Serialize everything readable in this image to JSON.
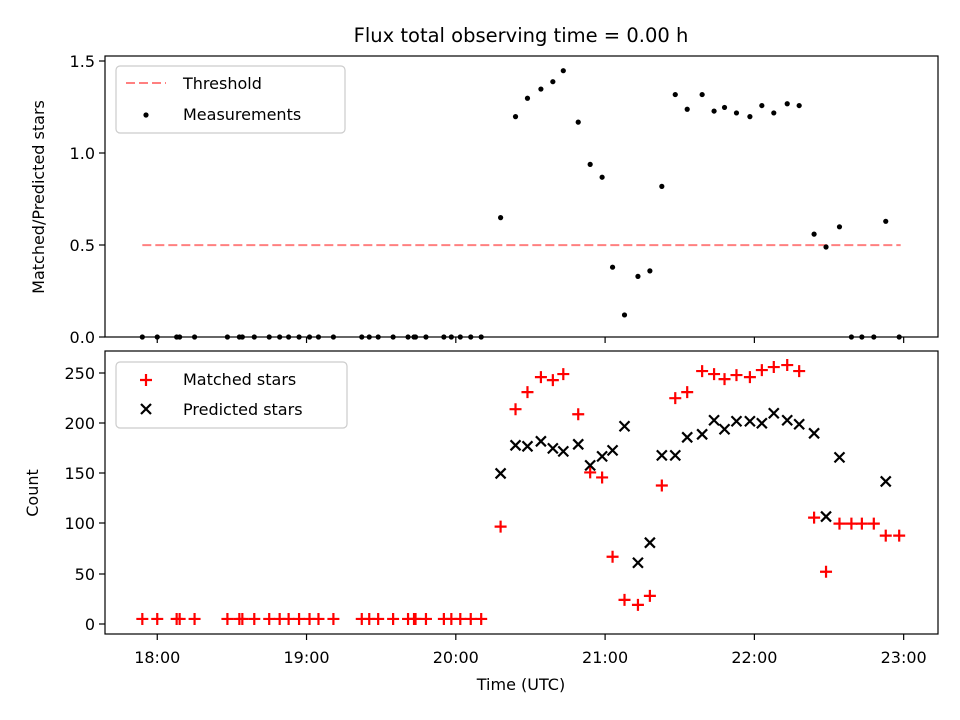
{
  "chart_data": [
    {
      "type": "scatter",
      "title": "Flux total observing time = 0.00 h",
      "xlabel": "",
      "ylabel": "Matched/Predicted stars",
      "ylim": [
        0,
        1.53
      ],
      "yticks": [
        "0.0",
        "0.5",
        "1.0",
        "1.5"
      ],
      "ytick_values": [
        0,
        0.5,
        1.0,
        1.5
      ],
      "xlim_hours": [
        17.65,
        23.23
      ],
      "xtick_values_hours": [
        18,
        19,
        20,
        21,
        22,
        23
      ],
      "legend_position": "upper-left",
      "series": [
        {
          "name": "Threshold",
          "kind": "dashed-line",
          "color": "#ff8080",
          "x_hours": [
            17.9,
            22.98
          ],
          "y": [
            0.5,
            0.5
          ]
        },
        {
          "name": "Measurements",
          "kind": "dot",
          "color": "#000000",
          "x_hours": [
            17.9,
            18.0,
            18.13,
            18.15,
            18.25,
            18.47,
            18.55,
            18.57,
            18.65,
            18.75,
            18.82,
            18.88,
            18.95,
            19.02,
            19.08,
            19.18,
            19.37,
            19.42,
            19.48,
            19.58,
            19.68,
            19.72,
            19.73,
            19.8,
            19.92,
            19.97,
            20.03,
            20.1,
            20.17,
            20.3,
            20.4,
            20.48,
            20.57,
            20.65,
            20.72,
            20.82,
            20.9,
            20.98,
            21.05,
            21.13,
            21.22,
            21.3,
            21.38,
            21.47,
            21.55,
            21.65,
            21.73,
            21.8,
            21.88,
            21.97,
            22.05,
            22.13,
            22.22,
            22.3,
            22.4,
            22.48,
            22.57,
            22.65,
            22.72,
            22.8,
            22.88,
            22.97
          ],
          "y": [
            0.0,
            0.0,
            0.0,
            0.0,
            0.0,
            0.0,
            0.0,
            0.0,
            0.0,
            0.0,
            0.0,
            0.0,
            0.0,
            0.0,
            0.0,
            0.0,
            0.0,
            0.0,
            0.0,
            0.0,
            0.0,
            0.0,
            0.0,
            0.0,
            0.0,
            0.0,
            0.0,
            0.0,
            0.0,
            0.65,
            1.2,
            1.3,
            1.35,
            1.39,
            1.45,
            1.17,
            0.94,
            0.87,
            0.38,
            0.12,
            0.33,
            0.36,
            0.82,
            1.32,
            1.24,
            1.32,
            1.23,
            1.25,
            1.22,
            1.2,
            1.26,
            1.22,
            1.27,
            1.26,
            0.56,
            0.49,
            0.6,
            0.0,
            0.0,
            0.0,
            0.63,
            0.0
          ]
        }
      ]
    },
    {
      "type": "scatter",
      "title": "",
      "xlabel": "Time (UTC)",
      "ylabel": "Count",
      "ylim": [
        -10,
        272
      ],
      "yticks": [
        "0",
        "50",
        "100",
        "150",
        "200",
        "250"
      ],
      "ytick_values": [
        0,
        50,
        100,
        150,
        200,
        250
      ],
      "xlim_hours": [
        17.65,
        23.23
      ],
      "xticks": [
        "18:00",
        "19:00",
        "20:00",
        "21:00",
        "22:00",
        "23:00"
      ],
      "xtick_values_hours": [
        18,
        19,
        20,
        21,
        22,
        23
      ],
      "legend_position": "upper-left",
      "series": [
        {
          "name": "Matched stars",
          "kind": "plus",
          "color": "#ff0000",
          "x_hours": [
            17.9,
            18.0,
            18.13,
            18.15,
            18.25,
            18.47,
            18.55,
            18.57,
            18.65,
            18.75,
            18.82,
            18.88,
            18.95,
            19.02,
            19.08,
            19.18,
            19.37,
            19.42,
            19.48,
            19.58,
            19.68,
            19.72,
            19.73,
            19.8,
            19.92,
            19.97,
            20.03,
            20.1,
            20.17,
            20.3,
            20.4,
            20.48,
            20.57,
            20.65,
            20.72,
            20.82,
            20.9,
            20.98,
            21.05,
            21.13,
            21.22,
            21.3,
            21.38,
            21.47,
            21.55,
            21.65,
            21.73,
            21.8,
            21.88,
            21.97,
            22.05,
            22.13,
            22.22,
            22.3,
            22.4,
            22.48,
            22.57,
            22.65,
            22.72,
            22.8,
            22.88,
            22.97
          ],
          "y": [
            5,
            5,
            5,
            5,
            5,
            5,
            5,
            5,
            5,
            5,
            5,
            5,
            5,
            5,
            5,
            5,
            5,
            5,
            5,
            5,
            5,
            5,
            5,
            5,
            5,
            5,
            5,
            5,
            5,
            97,
            214,
            231,
            246,
            243,
            249,
            209,
            151,
            146,
            67,
            24,
            19,
            28,
            138,
            225,
            231,
            252,
            249,
            244,
            248,
            246,
            253,
            256,
            258,
            252,
            106,
            52,
            100,
            100,
            100,
            100,
            88,
            88
          ]
        },
        {
          "name": "Predicted stars",
          "kind": "x",
          "color": "#000000",
          "x_hours": [
            20.3,
            20.4,
            20.48,
            20.57,
            20.65,
            20.72,
            20.82,
            20.9,
            20.98,
            21.05,
            21.13,
            21.22,
            21.3,
            21.38,
            21.47,
            21.55,
            21.65,
            21.73,
            21.8,
            21.88,
            21.97,
            22.05,
            22.13,
            22.22,
            22.3,
            22.4,
            22.48,
            22.57,
            22.88
          ],
          "y": [
            150,
            178,
            177,
            182,
            175,
            172,
            179,
            158,
            167,
            173,
            197,
            61,
            81,
            168,
            168,
            186,
            189,
            203,
            194,
            202,
            202,
            200,
            210,
            203,
            199,
            190,
            107,
            166,
            142
          ]
        }
      ]
    }
  ]
}
